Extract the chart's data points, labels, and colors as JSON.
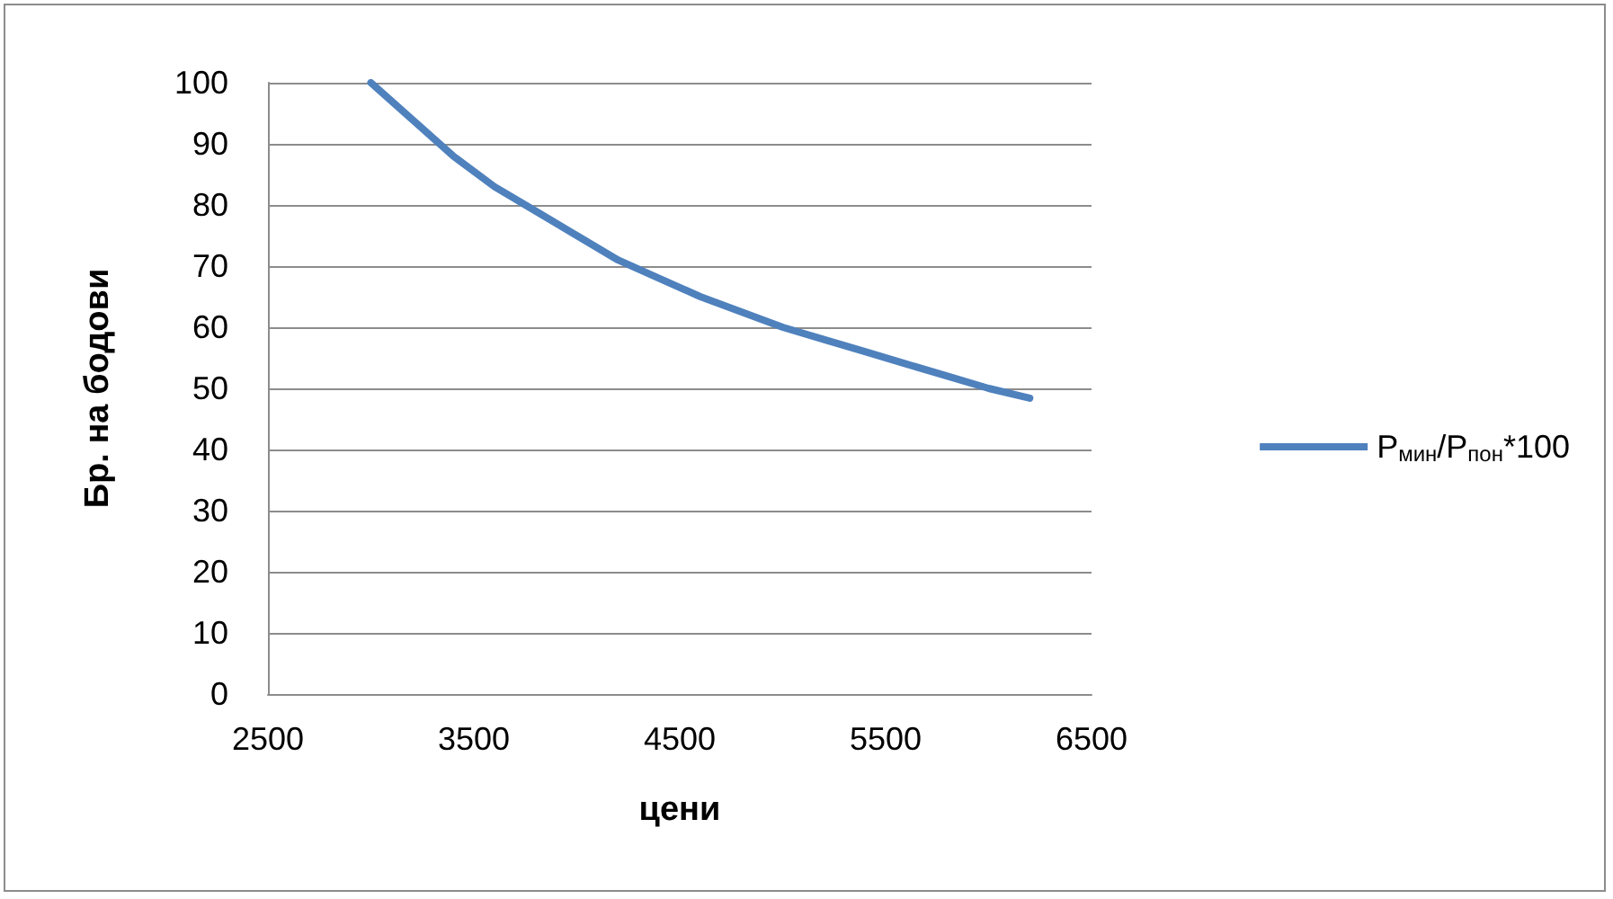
{
  "chart_data": {
    "type": "line",
    "xlabel": "цени",
    "ylabel": "Бр. на бодови",
    "x": [
      3000,
      3200,
      3400,
      3600,
      3800,
      4000,
      4200,
      4400,
      4600,
      4800,
      5000,
      5200,
      5400,
      5600,
      5800,
      6000,
      6200
    ],
    "series": [
      {
        "name": "P$_{мин}$/P$_{пон}$*100",
        "color": "#4f81bd",
        "values": [
          100,
          94,
          88,
          83,
          79,
          75,
          71,
          68,
          65,
          62.5,
          60,
          58,
          56,
          54,
          52,
          50,
          48.4
        ]
      }
    ],
    "xlim": [
      2500,
      6500
    ],
    "xticks": [
      2500,
      3500,
      4500,
      5500,
      6500
    ],
    "ylim": [
      0,
      100
    ],
    "yticks": [
      0,
      10,
      20,
      30,
      40,
      50,
      60,
      70,
      80,
      90,
      100
    ],
    "grid": "y",
    "legend": "right",
    "marker": "none",
    "line_style": "solid"
  }
}
